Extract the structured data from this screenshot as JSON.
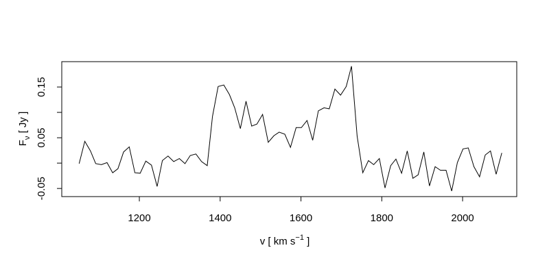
{
  "chart_data": {
    "type": "line",
    "xlabel": [
      "v [ km s",
      "−1",
      " ]"
    ],
    "ylabel": [
      "F",
      "ν",
      " [ Jy ]"
    ],
    "x": [
      1051,
      1065,
      1079,
      1092,
      1106,
      1120,
      1134,
      1147,
      1161,
      1175,
      1189,
      1202,
      1216,
      1230,
      1244,
      1257,
      1271,
      1285,
      1299,
      1313,
      1326,
      1340,
      1354,
      1368,
      1381,
      1395,
      1409,
      1423,
      1436,
      1450,
      1464,
      1478,
      1491,
      1505,
      1519,
      1533,
      1546,
      1560,
      1574,
      1588,
      1601,
      1615,
      1629,
      1643,
      1657,
      1670,
      1684,
      1698,
      1712,
      1725,
      1739,
      1753,
      1767,
      1780,
      1794,
      1808,
      1822,
      1835,
      1849,
      1863,
      1877,
      1890,
      1904,
      1918,
      1932,
      1945,
      1959,
      1973,
      1987,
      2001,
      2014,
      2028,
      2042,
      2056,
      2069,
      2083,
      2097
    ],
    "series": [
      {
        "color": "#000000",
        "values": [
          -0.001,
          0.043,
          0.024,
          -0.001,
          -0.003,
          0.001,
          -0.019,
          -0.011,
          0.022,
          0.032,
          -0.019,
          -0.02,
          0.004,
          -0.004,
          -0.046,
          0.005,
          0.014,
          0.003,
          0.009,
          -0.001,
          0.015,
          0.018,
          0.003,
          -0.005,
          0.092,
          0.151,
          0.154,
          0.135,
          0.109,
          0.068,
          0.122,
          0.073,
          0.077,
          0.096,
          0.041,
          0.054,
          0.061,
          0.057,
          0.031,
          0.07,
          0.07,
          0.084,
          0.045,
          0.103,
          0.109,
          0.107,
          0.146,
          0.134,
          0.151,
          0.191,
          0.053,
          -0.019,
          0.005,
          -0.003,
          0.009,
          -0.049,
          -0.005,
          0.008,
          -0.02,
          0.024,
          -0.03,
          -0.023,
          0.022,
          -0.045,
          -0.007,
          -0.014,
          -0.014,
          -0.055,
          0.001,
          0.028,
          0.03,
          -0.007,
          -0.027,
          0.016,
          0.024,
          -0.022,
          0.02
        ]
      }
    ],
    "xlim": [
      1008,
      2134
    ],
    "ylim": [
      -0.066,
      0.2
    ],
    "xticks": [
      1200,
      1400,
      1600,
      1800,
      2000
    ],
    "yticks": [
      -0.05,
      0.05,
      0.15
    ],
    "yticks_unlabeled": [
      0,
      0.1
    ]
  }
}
